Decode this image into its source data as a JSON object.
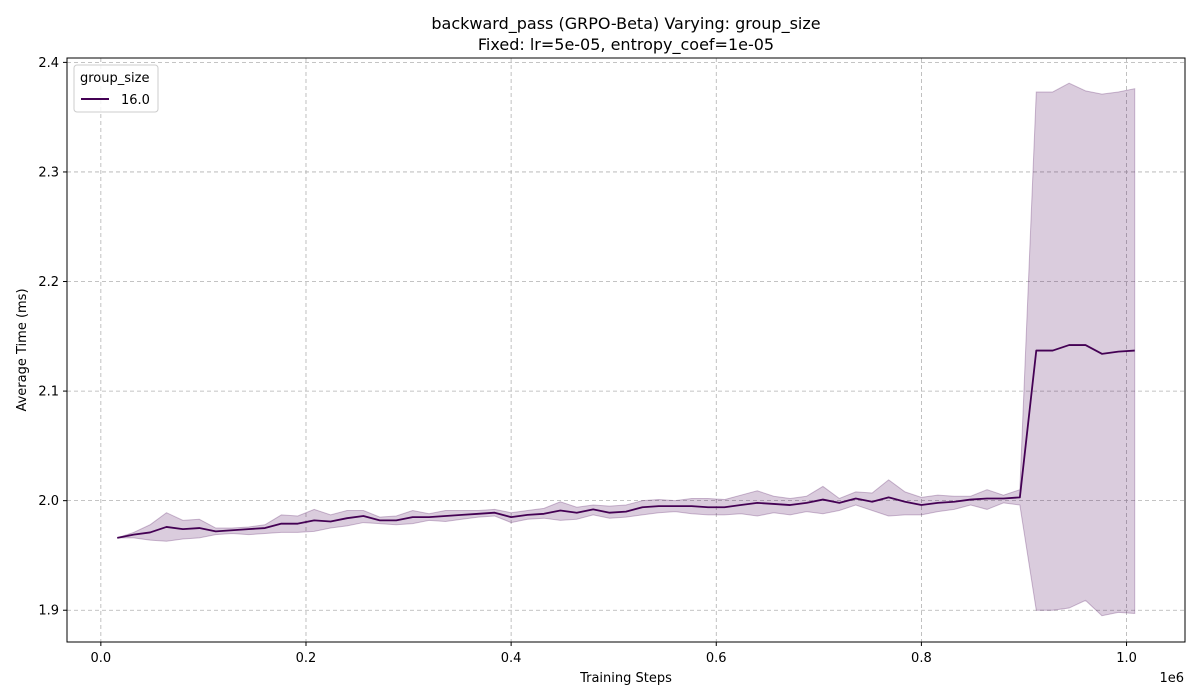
{
  "chart_data": {
    "type": "line",
    "title": "backward_pass (GRPO-Beta) Varying: group_size",
    "subtitle": "Fixed: lr=5e-05, entropy_coef=1e-05",
    "xlabel": "Training Steps",
    "ylabel": "Average Time (ms)",
    "x_offset_text": "1e6",
    "xlim": [
      -0.033,
      1.057
    ],
    "ylim": [
      1.871,
      2.404
    ],
    "xticks": [
      0.0,
      0.2,
      0.4,
      0.6,
      0.8,
      1.0
    ],
    "xtick_labels": [
      "0.0",
      "0.2",
      "0.4",
      "0.6",
      "0.8",
      "1.0"
    ],
    "yticks": [
      1.9,
      2.0,
      2.1,
      2.2,
      2.3,
      2.4
    ],
    "ytick_labels": [
      "1.9",
      "2.0",
      "2.1",
      "2.2",
      "2.3",
      "2.4"
    ],
    "grid": true,
    "legend": {
      "title": "group_size",
      "placement": "top-left"
    },
    "series": [
      {
        "name": "16.0",
        "color": "#440154",
        "fill_color": "#440154",
        "x": [
          0.016,
          0.032,
          0.048,
          0.064,
          0.08,
          0.096,
          0.112,
          0.128,
          0.144,
          0.16,
          0.176,
          0.192,
          0.208,
          0.224,
          0.24,
          0.256,
          0.272,
          0.288,
          0.304,
          0.32,
          0.336,
          0.352,
          0.368,
          0.384,
          0.4,
          0.416,
          0.432,
          0.448,
          0.464,
          0.48,
          0.496,
          0.512,
          0.528,
          0.544,
          0.56,
          0.576,
          0.592,
          0.608,
          0.624,
          0.64,
          0.656,
          0.672,
          0.688,
          0.704,
          0.72,
          0.736,
          0.752,
          0.768,
          0.784,
          0.8,
          0.816,
          0.832,
          0.848,
          0.864,
          0.88,
          0.896,
          0.912,
          0.928,
          0.944,
          0.96,
          0.976,
          0.992,
          1.008
        ],
        "y": [
          1.966,
          1.969,
          1.971,
          1.976,
          1.974,
          1.975,
          1.972,
          1.973,
          1.974,
          1.975,
          1.979,
          1.979,
          1.982,
          1.981,
          1.984,
          1.986,
          1.982,
          1.982,
          1.985,
          1.985,
          1.986,
          1.987,
          1.988,
          1.989,
          1.985,
          1.987,
          1.988,
          1.991,
          1.989,
          1.992,
          1.989,
          1.99,
          1.994,
          1.995,
          1.995,
          1.995,
          1.994,
          1.994,
          1.996,
          1.998,
          1.997,
          1.996,
          1.998,
          2.001,
          1.998,
          2.002,
          1.999,
          2.003,
          1.999,
          1.996,
          1.998,
          1.999,
          2.001,
          2.002,
          2.002,
          2.003,
          2.137,
          2.137,
          2.142,
          2.142,
          2.134,
          2.136,
          2.137
        ],
        "y_upper": [
          1.966,
          1.971,
          1.978,
          1.989,
          1.982,
          1.983,
          1.975,
          1.975,
          1.976,
          1.978,
          1.987,
          1.986,
          1.992,
          1.987,
          1.991,
          1.991,
          1.985,
          1.986,
          1.991,
          1.988,
          1.991,
          1.991,
          1.991,
          1.992,
          1.989,
          1.991,
          1.993,
          1.999,
          1.994,
          1.996,
          1.995,
          1.996,
          2.0,
          2.001,
          2.0,
          2.002,
          2.002,
          2.001,
          2.005,
          2.009,
          2.004,
          2.002,
          2.004,
          2.013,
          2.002,
          2.008,
          2.007,
          2.019,
          2.008,
          2.003,
          2.005,
          2.004,
          2.004,
          2.01,
          2.005,
          2.01,
          2.373,
          2.373,
          2.381,
          2.374,
          2.371,
          2.373,
          2.376
        ],
        "y_lower": [
          1.966,
          1.966,
          1.964,
          1.963,
          1.965,
          1.966,
          1.969,
          1.97,
          1.969,
          1.97,
          1.971,
          1.971,
          1.972,
          1.975,
          1.977,
          1.98,
          1.979,
          1.978,
          1.979,
          1.982,
          1.981,
          1.983,
          1.985,
          1.986,
          1.98,
          1.983,
          1.984,
          1.982,
          1.983,
          1.987,
          1.984,
          1.985,
          1.987,
          1.989,
          1.99,
          1.988,
          1.987,
          1.987,
          1.988,
          1.986,
          1.989,
          1.987,
          1.99,
          1.988,
          1.991,
          1.996,
          1.991,
          1.986,
          1.987,
          1.987,
          1.99,
          1.992,
          1.996,
          1.992,
          1.998,
          1.996,
          1.9,
          1.9,
          1.902,
          1.909,
          1.895,
          1.898,
          1.897
        ]
      }
    ]
  }
}
